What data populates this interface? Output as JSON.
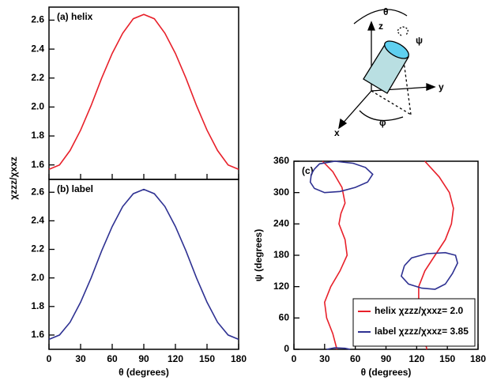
{
  "chart_data": [
    {
      "type": "line",
      "panel_label": "(a) helix",
      "y_label": "χzzz/χxxz",
      "x": [
        0,
        10,
        20,
        30,
        40,
        50,
        60,
        70,
        80,
        90,
        100,
        110,
        120,
        130,
        140,
        150,
        160,
        170,
        180
      ],
      "series": [
        {
          "name": "helix",
          "color": "#e8202a",
          "values": [
            1.57,
            1.6,
            1.7,
            1.84,
            2.01,
            2.2,
            2.37,
            2.51,
            2.61,
            2.64,
            2.61,
            2.51,
            2.37,
            2.2,
            2.01,
            1.84,
            1.7,
            1.6,
            1.57
          ]
        }
      ],
      "xlim": [
        0,
        180
      ],
      "xticks": [
        0,
        30,
        60,
        90,
        120,
        150,
        180
      ],
      "ylim": [
        1.5,
        2.69
      ],
      "yticks": [
        1.6,
        1.8,
        {
          "value": 2,
          "label": "2.0"
        },
        2.2,
        2.4,
        2.6
      ]
    },
    {
      "type": "line",
      "panel_label": "(b) label",
      "x_label": "θ (degrees)",
      "x": [
        0,
        10,
        20,
        30,
        40,
        50,
        60,
        70,
        80,
        90,
        100,
        110,
        120,
        130,
        140,
        150,
        160,
        170,
        180
      ],
      "series": [
        {
          "name": "label",
          "color": "#2e3192",
          "values": [
            1.57,
            1.6,
            1.69,
            1.83,
            2.0,
            2.19,
            2.36,
            2.5,
            2.59,
            2.62,
            2.59,
            2.5,
            2.36,
            2.19,
            2.0,
            1.83,
            1.69,
            1.6,
            1.57
          ]
        }
      ],
      "xlim": [
        0,
        180
      ],
      "xticks": [
        0,
        30,
        60,
        90,
        120,
        150,
        180
      ],
      "ylim": [
        1.5,
        2.69
      ],
      "yticks": [
        1.6,
        1.8,
        {
          "value": 2,
          "label": "2.0"
        },
        2.2,
        2.4,
        2.6
      ]
    },
    {
      "type": "line",
      "panel_label": "(c)",
      "x_label": "θ (degrees)",
      "y_label": "ψ (degrees)",
      "series": [
        {
          "name": "helix χzzz/χxxz= 2.0",
          "color": "#e8202a",
          "x": [
            28,
            38,
            47,
            50,
            46,
            44,
            50,
            52,
            45,
            36,
            30,
            32,
            38,
            42,
            null,
            128,
            142,
            152,
            156,
            154,
            148,
            138,
            128,
            122,
            122,
            126,
            126,
            130
          ],
          "values": [
            360,
            340,
            310,
            280,
            260,
            240,
            210,
            180,
            150,
            120,
            90,
            60,
            30,
            0,
            null,
            360,
            330,
            300,
            270,
            240,
            210,
            180,
            150,
            120,
            90,
            60,
            30,
            0
          ]
        },
        {
          "name": "label χzzz/χxxz= 3.85",
          "color": "#2e3192",
          "x": [
            20,
            25,
            40,
            58,
            70,
            77,
            72,
            60,
            45,
            30,
            20,
            16,
            17,
            20,
            null,
            108,
            115,
            130,
            148,
            158,
            160,
            155,
            148,
            138,
            125,
            112,
            105,
            108,
            null,
            32,
            40,
            50,
            55
          ],
          "values": [
            345,
            355,
            360,
            356,
            348,
            335,
            320,
            310,
            302,
            300,
            308,
            320,
            335,
            345,
            null,
            160,
            175,
            183,
            185,
            180,
            165,
            145,
            125,
            115,
            117,
            125,
            140,
            160,
            null,
            0,
            3,
            2,
            0
          ]
        }
      ],
      "xlim": [
        0,
        180
      ],
      "xticks": [
        0,
        30,
        60,
        90,
        120,
        150,
        180
      ],
      "ylim": [
        0,
        360
      ],
      "yticks": [
        0,
        60,
        120,
        180,
        240,
        300,
        360
      ],
      "legend": "lower right"
    }
  ],
  "diagram": {
    "labels": [
      "θ",
      "z",
      "ψ",
      "y",
      "x",
      "φ"
    ]
  }
}
